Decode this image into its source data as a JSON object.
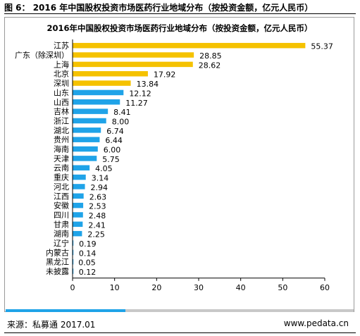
{
  "caption": "图 6： 2016 年中国股权投资市场医药行业地域分布（按投资金额，亿元人民币）",
  "footer": {
    "source": "来源：私募通 2017.01",
    "site": "www.pedata.cn"
  },
  "colors": {
    "gold": "#f5c200",
    "blue": "#1fa3e8",
    "axis": "#000000",
    "footer_gray": "#c8c8c8"
  },
  "chart_data": {
    "type": "bar",
    "orientation": "horizontal",
    "title": "2016年中国股权投资市场医药行业地域分布（按投资金额，亿元人民币）",
    "categories": [
      "江苏",
      "广东（除深圳）",
      "上海",
      "北京",
      "深圳",
      "山东",
      "山西",
      "吉林",
      "浙江",
      "湖北",
      "贵州",
      "海南",
      "天津",
      "云南",
      "重庆",
      "河北",
      "江西",
      "安徽",
      "四川",
      "甘肃",
      "湖南",
      "辽宁",
      "内蒙古",
      "黑龙江",
      "未披露"
    ],
    "values": [
      55.37,
      28.85,
      28.62,
      17.92,
      13.84,
      12.12,
      11.27,
      8.41,
      8.0,
      6.74,
      6.44,
      6.0,
      5.75,
      4.05,
      3.14,
      2.94,
      2.63,
      2.53,
      2.48,
      2.41,
      2.25,
      0.19,
      0.14,
      0.05,
      0.12
    ],
    "value_labels": [
      "55.37",
      "28.85",
      "28.62",
      "17.92",
      "13.84",
      "12.12",
      "11.27",
      "8.41",
      "8.00",
      "6.74",
      "6.44",
      "6.00",
      "5.75",
      "4.05",
      "3.14",
      "2.94",
      "2.63",
      "2.53",
      "2.48",
      "2.41",
      "2.25",
      "0.19",
      "0.14",
      "0.05",
      "0.12"
    ],
    "bar_colors": [
      "gold",
      "gold",
      "gold",
      "gold",
      "gold",
      "blue",
      "blue",
      "blue",
      "blue",
      "blue",
      "blue",
      "blue",
      "blue",
      "blue",
      "blue",
      "blue",
      "blue",
      "blue",
      "blue",
      "blue",
      "blue",
      "blue",
      "blue",
      "blue",
      "blue"
    ],
    "xlim": [
      0,
      60
    ],
    "xticks": [
      "0",
      "10",
      "20",
      "30",
      "40",
      "50",
      "60"
    ],
    "grid": false,
    "legend": false
  }
}
